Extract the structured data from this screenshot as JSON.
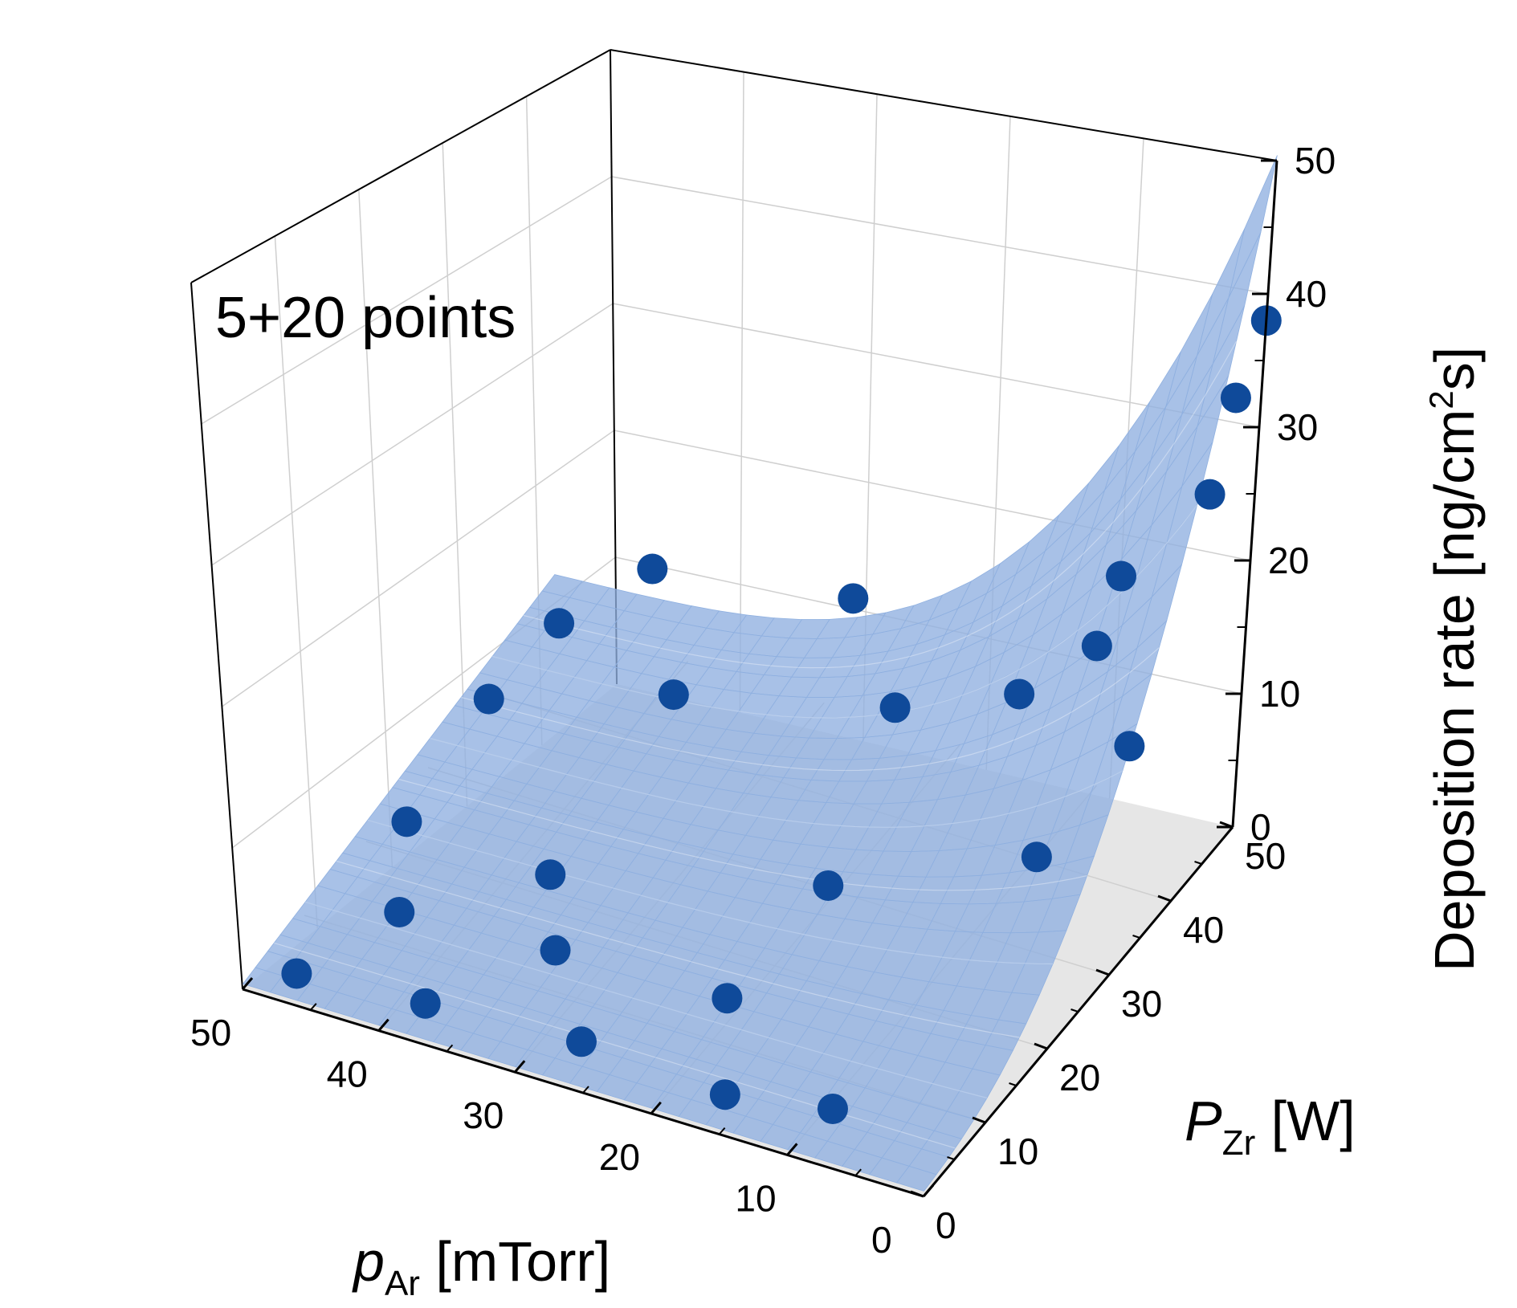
{
  "chart_data": {
    "type": "surface3d-scatter",
    "annotation": "5+20 points",
    "xlabel": {
      "symbol": "p",
      "subscript": "Ar",
      "unit": " [mTorr]"
    },
    "ylabel": {
      "symbol": "P",
      "subscript": "Zr",
      "unit": " [W]"
    },
    "zlabel": {
      "prefix": "Deposition rate [ng/cm",
      "superscript": "2",
      "suffix": "s]"
    },
    "xlim": [
      0,
      50
    ],
    "ylim": [
      0,
      50
    ],
    "zlim": [
      0,
      50
    ],
    "x_ticks": [
      "0",
      "10",
      "20",
      "30",
      "40",
      "50"
    ],
    "y_ticks": [
      "0",
      "10",
      "20",
      "30",
      "40",
      "50"
    ],
    "z_ticks": [
      "0",
      "10",
      "20",
      "30",
      "40",
      "50"
    ],
    "colors": {
      "surface": "#8fb0e0",
      "points": "#0f4a9a",
      "floor": "#e6e6e6"
    },
    "points": [
      {
        "p": 47,
        "P": 2,
        "rate": 1
      },
      {
        "p": 38,
        "P": 3,
        "rate": 1
      },
      {
        "p": 27,
        "P": 4,
        "rate": 1
      },
      {
        "p": 16,
        "P": 3,
        "rate": 1
      },
      {
        "p": 9,
        "P": 5,
        "rate": 1
      },
      {
        "p": 44,
        "P": 12,
        "rate": 1
      },
      {
        "p": 33,
        "P": 13,
        "rate": 1
      },
      {
        "p": 20,
        "P": 12,
        "rate": 2
      },
      {
        "p": 48,
        "P": 22,
        "rate": 1
      },
      {
        "p": 37,
        "P": 21,
        "rate": 1
      },
      {
        "p": 19,
        "P": 26,
        "rate": 3
      },
      {
        "p": 48,
        "P": 35,
        "rate": 3
      },
      {
        "p": 22,
        "P": 43,
        "rate": 6
      },
      {
        "p": 47,
        "P": 44,
        "rate": 4
      },
      {
        "p": 38,
        "P": 43,
        "rate": 2
      },
      {
        "p": 16,
        "P": 50,
        "rate": 5
      },
      {
        "p": 7,
        "P": 33,
        "rate": 5
      },
      {
        "p": 7,
        "P": 48,
        "rate": 5
      },
      {
        "p": 43,
        "P": 50,
        "rate": 6
      },
      {
        "p": 9,
        "P": 46,
        "rate": 13
      },
      {
        "p": 8,
        "P": 47,
        "rate": 18
      },
      {
        "p": 2,
        "P": 47,
        "rate": 26
      },
      {
        "p": 1,
        "P": 48,
        "rate": 33
      },
      {
        "p": 0,
        "P": 50,
        "rate": 38
      },
      {
        "p": 28,
        "P": 49,
        "rate": 9
      }
    ]
  }
}
